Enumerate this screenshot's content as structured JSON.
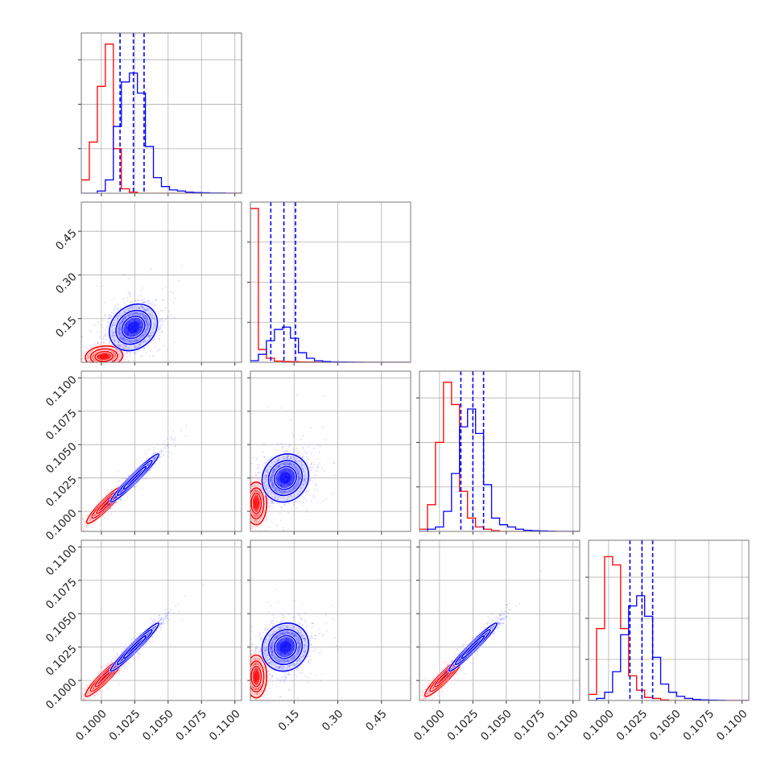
{
  "chart_data": {
    "type": "corner",
    "grid": true,
    "series": [
      {
        "color": "#ff0000"
      },
      {
        "color": "#0000ff"
      }
    ],
    "parameters": [
      {
        "range": [
          0.0985,
          0.1105
        ],
        "ticks": [
          0.1,
          0.1025,
          0.105,
          0.1075,
          0.11
        ],
        "tick_labels": [
          "0.1000",
          "0.1025",
          "0.1050",
          "0.1075",
          "0.1100"
        ]
      },
      {
        "range": [
          0.0,
          0.55
        ],
        "ticks": [
          0.15,
          0.3,
          0.45
        ],
        "tick_labels": [
          "0.15",
          "0.30",
          "0.45"
        ]
      },
      {
        "range": [
          0.0985,
          0.1105
        ],
        "ticks": [
          0.1,
          0.1025,
          0.105,
          0.1075,
          0.11
        ],
        "tick_labels": [
          "0.1000",
          "0.1025",
          "0.1050",
          "0.1075",
          "0.1100"
        ]
      },
      {
        "range": [
          0.0985,
          0.1105
        ],
        "ticks": [
          0.1,
          0.1025,
          0.105,
          0.1075,
          0.11
        ],
        "tick_labels": [
          "0.1000",
          "0.1025",
          "0.1050",
          "0.1075",
          "0.1100"
        ]
      }
    ],
    "marginal_histograms": [
      {
        "bin_edges": [
          0.0985,
          0.0991,
          0.0997,
          0.1003,
          0.1009,
          0.1015,
          0.1021,
          0.1027,
          0.1033,
          0.1039,
          0.1045,
          0.1051,
          0.1057,
          0.1063,
          0.1069,
          0.1075,
          0.1081,
          0.1087,
          0.1093,
          0.1099,
          0.1105
        ],
        "counts": [
          [
            6,
            23,
            48,
            67,
            20,
            2,
            0.5,
            0,
            0,
            0,
            0,
            0,
            0,
            0,
            0,
            0,
            0,
            0,
            0,
            0
          ],
          [
            0,
            0,
            1,
            6,
            30,
            50,
            54,
            45,
            21,
            7,
            3,
            1.5,
            1,
            0.5,
            0.3,
            0.2,
            0.1,
            0.1,
            0,
            0
          ]
        ],
        "quantiles": [
          0.1014,
          0.1024,
          0.1032
        ],
        "ylim": [
          0,
          72
        ]
      },
      {
        "bin_edges": [
          0.0,
          0.0275,
          0.055,
          0.0825,
          0.11,
          0.1375,
          0.165,
          0.1925,
          0.22,
          0.2475,
          0.275,
          0.3025,
          0.33,
          0.3575,
          0.385,
          0.4125,
          0.44,
          0.4675,
          0.495,
          0.5225,
          0.55
        ],
        "counts": [
          [
            192,
            16,
            5,
            1.5,
            1,
            0.8,
            0.5,
            0.4,
            0.2,
            0.1,
            0.1,
            0,
            0,
            0,
            0,
            0,
            0,
            0,
            0,
            0
          ],
          [
            2,
            10,
            27,
            41,
            44,
            30,
            12,
            5,
            2,
            1,
            0.5,
            0.3,
            0.2,
            0.1,
            0,
            0,
            0,
            0,
            0,
            0
          ]
        ],
        "quantiles": [
          0.07,
          0.115,
          0.155
        ],
        "ylim": [
          0,
          200
        ]
      },
      {
        "bin_edges": [
          0.0985,
          0.0991,
          0.0997,
          0.1003,
          0.1009,
          0.1015,
          0.1021,
          0.1027,
          0.1033,
          0.1039,
          0.1045,
          0.1051,
          0.1057,
          0.1063,
          0.1069,
          0.1075,
          0.1081,
          0.1087,
          0.1093,
          0.1099,
          0.1105
        ],
        "counts": [
          [
            1,
            12,
            40,
            67,
            57,
            18,
            6,
            2,
            1,
            0.3,
            0,
            0,
            0,
            0,
            0,
            0,
            0,
            0,
            0,
            0
          ],
          [
            0,
            1,
            2,
            9,
            26,
            47,
            55,
            44,
            21,
            6,
            3,
            2,
            1,
            0.5,
            0.3,
            0.2,
            0.1,
            0,
            0,
            0
          ]
        ],
        "quantiles": [
          0.1016,
          0.1025,
          0.1033
        ],
        "ylim": [
          0,
          72
        ]
      },
      {
        "bin_edges": [
          0.0985,
          0.0991,
          0.0997,
          0.1003,
          0.1009,
          0.1015,
          0.1021,
          0.1027,
          0.1033,
          0.1039,
          0.1045,
          0.1051,
          0.1057,
          0.1063,
          0.1069,
          0.1075,
          0.1081,
          0.1087,
          0.1093,
          0.1099,
          0.1105
        ],
        "counts": [
          [
            3,
            35,
            70,
            66,
            35,
            12,
            5,
            1.5,
            1,
            0.3,
            0,
            0,
            0,
            0,
            0,
            0,
            0,
            0,
            0,
            0
          ],
          [
            0,
            1,
            4,
            14,
            32,
            46,
            51,
            41,
            21,
            8,
            4,
            2,
            1,
            0.5,
            0.3,
            0.2,
            0.1,
            0,
            0,
            0
          ]
        ],
        "quantiles": [
          0.1016,
          0.1025,
          0.1033
        ],
        "ylim": [
          0,
          78
        ]
      }
    ],
    "pair_contours": [
      {
        "x_param": 0,
        "y_param": 1,
        "centers": [
          [
            0.1002,
            0.02
          ],
          [
            0.1024,
            0.12
          ]
        ],
        "spreads": [
          [
            0.0007,
            0.018
          ],
          [
            0.0009,
            0.04
          ]
        ],
        "correlation": [
          0.1,
          0.2
        ]
      },
      {
        "x_param": 0,
        "y_param": 2,
        "centers": [
          [
            0.1003,
            0.1005
          ],
          [
            0.1025,
            0.1025
          ]
        ],
        "spreads": [
          [
            0.0007,
            0.0007
          ],
          [
            0.0009,
            0.0009
          ]
        ],
        "correlation": [
          0.93,
          0.97
        ]
      },
      {
        "x_param": 1,
        "y_param": 2,
        "centers": [
          [
            0.02,
            0.1006
          ],
          [
            0.12,
            0.1025
          ]
        ],
        "spreads": [
          [
            0.018,
            0.0008
          ],
          [
            0.04,
            0.0009
          ]
        ],
        "correlation": [
          0.0,
          0.1
        ]
      },
      {
        "x_param": 0,
        "y_param": 3,
        "centers": [
          [
            0.1002,
            0.1002
          ],
          [
            0.1025,
            0.1025
          ]
        ],
        "spreads": [
          [
            0.0007,
            0.0007
          ],
          [
            0.0009,
            0.0009
          ]
        ],
        "correlation": [
          0.93,
          0.97
        ]
      },
      {
        "x_param": 1,
        "y_param": 3,
        "centers": [
          [
            0.02,
            0.1003
          ],
          [
            0.12,
            0.1025
          ]
        ],
        "spreads": [
          [
            0.018,
            0.0008
          ],
          [
            0.04,
            0.0009
          ]
        ],
        "correlation": [
          0.0,
          0.1
        ]
      },
      {
        "x_param": 2,
        "y_param": 3,
        "centers": [
          [
            0.1003,
            0.1002
          ],
          [
            0.1025,
            0.1025
          ]
        ],
        "spreads": [
          [
            0.0007,
            0.0007
          ],
          [
            0.0009,
            0.0009
          ]
        ],
        "correlation": [
          0.93,
          0.97
        ]
      }
    ]
  }
}
